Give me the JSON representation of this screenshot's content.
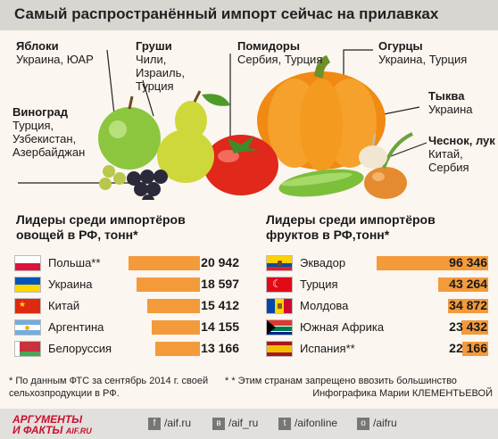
{
  "title": "Самый распространённый импорт сейчас на прилавках",
  "produce_labels": [
    {
      "name": "Яблоки",
      "origin": "Украина, ЮАР"
    },
    {
      "name": "Груши",
      "origin": "Чили, Израиль, Турция"
    },
    {
      "name": "Помидоры",
      "origin": "Сербия, Турция"
    },
    {
      "name": "Огурцы",
      "origin": "Украина, Турция"
    },
    {
      "name": "Тыква",
      "origin": "Украина"
    },
    {
      "name": "Виноград",
      "origin": "Турция, Узбекистан, Азербайджан"
    },
    {
      "name": "Чеснок, лук",
      "origin": "Китай, Сербия"
    }
  ],
  "chart_data": [
    {
      "type": "bar",
      "title": "Лидеры среди импортёров овощей в РФ, тонн*",
      "categories": [
        "Польша**",
        "Украина",
        "Китай",
        "Аргентина",
        "Белоруссия"
      ],
      "values": [
        20942,
        18597,
        15412,
        14155,
        13166
      ],
      "value_labels": [
        "20 942",
        "18 597",
        "15 412",
        "14 155",
        "13 166"
      ],
      "flags": [
        "poland",
        "ukraine",
        "china",
        "argentina",
        "belarus"
      ],
      "color": "#f39a3b"
    },
    {
      "type": "bar",
      "title": "Лидеры среди импортёров фруктов в РФ,тонн*",
      "categories": [
        "Эквадор",
        "Турция",
        "Молдова",
        "Южная Африка",
        "Испания**"
      ],
      "values": [
        96346,
        43264,
        34872,
        23432,
        22166
      ],
      "value_labels": [
        "96 346",
        "43 264",
        "34 872",
        "23 432",
        "22 166"
      ],
      "flags": [
        "ecuador",
        "turkey",
        "moldova",
        "south-africa",
        "spain"
      ],
      "color": "#f39a3b"
    }
  ],
  "notes": {
    "left": "* По данным ФТС за сентябрь 2014 г. своей сельхозпродукции в РФ.",
    "right": "* * Этим странам запрещено ввозить большинство",
    "credit": "Инфографика Марии КЛЕМЕНТЬЕВОЙ"
  },
  "footer": {
    "logo_line1": "АРГУМЕНТЫ",
    "logo_line2": "И ФАКТЫ",
    "logo_domain": "AIF.RU",
    "social": [
      {
        "icon": "facebook-icon",
        "glyph": "f",
        "text": "/aif.ru"
      },
      {
        "icon": "vk-icon",
        "glyph": "в",
        "text": "/aif_ru"
      },
      {
        "icon": "twitter-icon",
        "glyph": "t",
        "text": "/aifonline"
      },
      {
        "icon": "odnoklassniki-icon",
        "glyph": "о",
        "text": "/aifru"
      }
    ]
  }
}
